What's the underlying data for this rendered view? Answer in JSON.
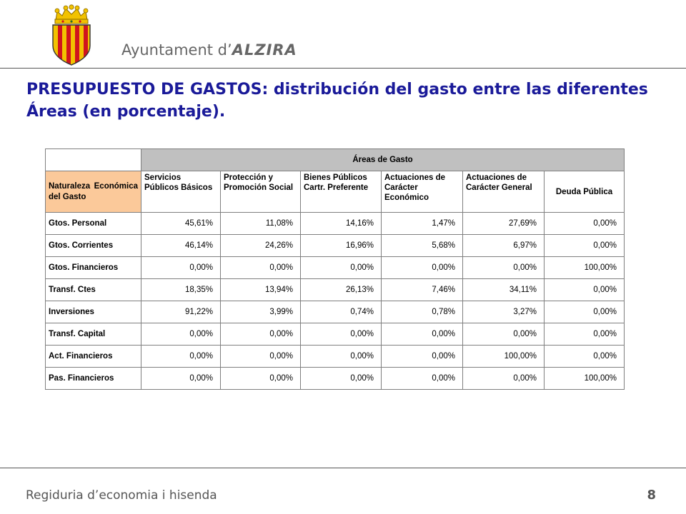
{
  "header": {
    "brand_prefix": "Ayuntament d’",
    "brand_city": "ALZIRA",
    "logo": "city-coat-of-arms"
  },
  "title": "PRESUPUESTO DE GASTOS: distribución del gasto entre las diferentes Áreas (en porcentaje).",
  "table": {
    "group_header": "Áreas de Gasto",
    "row_header": "Naturaleza Económica del Gasto",
    "columns": [
      "Servicios Públicos Básicos",
      "Protección y Promoción Social",
      "Bienes Públicos Cartr. Preferente",
      "Actuaciones de Carácter Económico",
      "Actuaciones de Carácter General",
      "Deuda Pública"
    ],
    "rows": [
      {
        "label": "Gtos. Personal",
        "values": [
          "45,61%",
          "11,08%",
          "14,16%",
          "1,47%",
          "27,69%",
          "0,00%"
        ]
      },
      {
        "label": "Gtos. Corrientes",
        "values": [
          "46,14%",
          "24,26%",
          "16,96%",
          "5,68%",
          "6,97%",
          "0,00%"
        ]
      },
      {
        "label": "Gtos. Financieros",
        "values": [
          "0,00%",
          "0,00%",
          "0,00%",
          "0,00%",
          "0,00%",
          "100,00%"
        ]
      },
      {
        "label": "Transf. Ctes",
        "values": [
          "18,35%",
          "13,94%",
          "26,13%",
          "7,46%",
          "34,11%",
          "0,00%"
        ]
      },
      {
        "label": "Inversiones",
        "values": [
          "91,22%",
          "3,99%",
          "0,74%",
          "0,78%",
          "3,27%",
          "0,00%"
        ]
      },
      {
        "label": "Transf. Capital",
        "values": [
          "0,00%",
          "0,00%",
          "0,00%",
          "0,00%",
          "0,00%",
          "0,00%"
        ]
      },
      {
        "label": "Act. Financieros",
        "values": [
          "0,00%",
          "0,00%",
          "0,00%",
          "0,00%",
          "100,00%",
          "0,00%"
        ]
      },
      {
        "label": "Pas. Financieros",
        "values": [
          "0,00%",
          "0,00%",
          "0,00%",
          "0,00%",
          "0,00%",
          "100,00%"
        ]
      }
    ]
  },
  "footer": {
    "text": "Regiduria d’economia i hisenda",
    "page": "8"
  },
  "colors": {
    "title": "#1a1a99",
    "group_header_bg": "#c0c0c0",
    "row_header_bg": "#fbc99a",
    "crest_gold": "#f2c200",
    "crest_red": "#d0141e"
  }
}
